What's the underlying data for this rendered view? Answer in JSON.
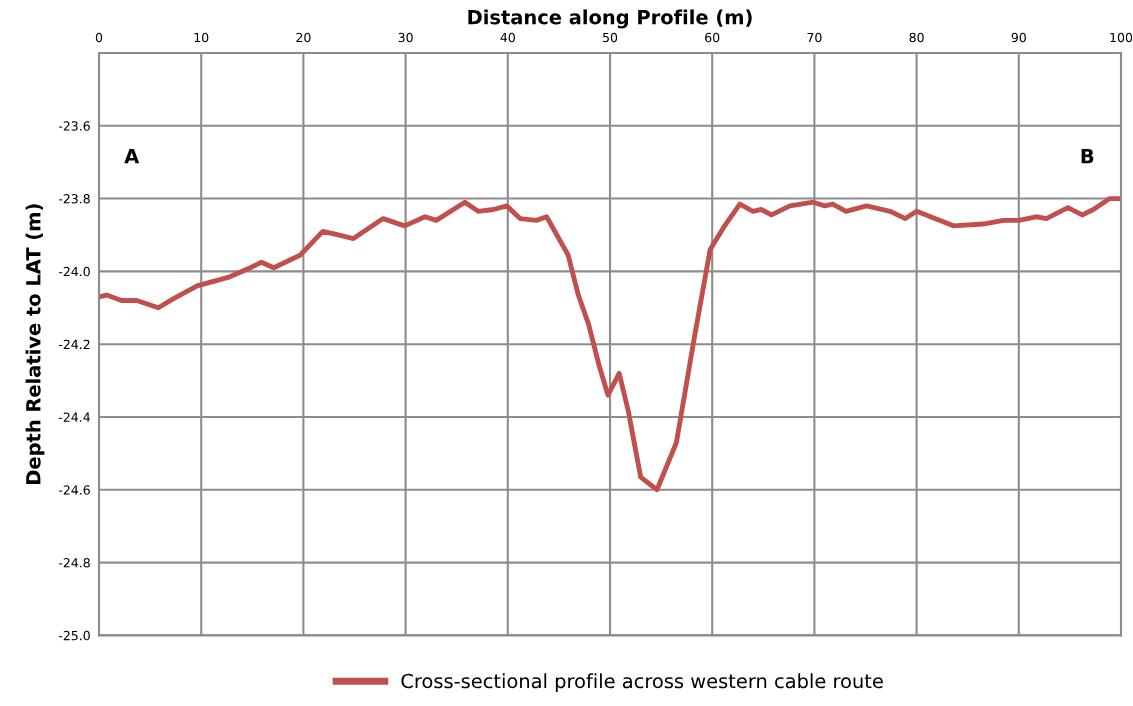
{
  "chart_data": {
    "type": "line",
    "xlabel": "Distance along Profile (m)",
    "ylabel": "Depth Relative to LAT (m)",
    "x": [
      0,
      0.75,
      2.2,
      3.7,
      5.8,
      7.3,
      9.6,
      12.8,
      14.8,
      15.9,
      17.1,
      19.7,
      21.9,
      23.4,
      24.9,
      27.8,
      29.9,
      31.9,
      33.0,
      35.8,
      37.1,
      38.6,
      39.9,
      41.2,
      42.8,
      43.8,
      45.9,
      46.9,
      47.9,
      48.9,
      49.8,
      50.9,
      51.8,
      53.0,
      54.6,
      56.5,
      58.2,
      59.8,
      61.1,
      62.7,
      64.0,
      64.8,
      65.8,
      67.6,
      69.9,
      71.0,
      71.8,
      73.1,
      75.1,
      77.4,
      78.9,
      80.0,
      83.6,
      86.5,
      88.5,
      90.0,
      91.7,
      92.7,
      94.8,
      96.2,
      97.3,
      98.9,
      100.0
    ],
    "series": [
      {
        "name": "Cross-sectional profile across western cable route",
        "color": "#c0504d",
        "values": [
          -24.07,
          -24.065,
          -24.08,
          -24.08,
          -24.1,
          -24.075,
          -24.04,
          -24.015,
          -23.99,
          -23.975,
          -23.99,
          -23.955,
          -23.89,
          -23.9,
          -23.91,
          -23.855,
          -23.875,
          -23.85,
          -23.86,
          -23.81,
          -23.835,
          -23.83,
          -23.82,
          -23.855,
          -23.86,
          -23.85,
          -23.955,
          -24.065,
          -24.145,
          -24.255,
          -24.34,
          -24.28,
          -24.385,
          -24.565,
          -24.6,
          -24.47,
          -24.19,
          -23.94,
          -23.88,
          -23.815,
          -23.835,
          -23.83,
          -23.845,
          -23.82,
          -23.81,
          -23.82,
          -23.815,
          -23.835,
          -23.82,
          -23.835,
          -23.855,
          -23.835,
          -23.875,
          -23.87,
          -23.86,
          -23.86,
          -23.85,
          -23.855,
          -23.825,
          -23.845,
          -23.83,
          -23.8,
          -23.8
        ]
      }
    ],
    "xlim": [
      0,
      100
    ],
    "xticks": [
      0,
      10,
      20,
      30,
      40,
      50,
      60,
      70,
      80,
      90,
      100
    ],
    "ylim": [
      -25.0,
      -23.4
    ],
    "yticks": [
      {
        "value": -25.0,
        "label": "-25.0"
      },
      {
        "value": -24.8,
        "label": "-24.8"
      },
      {
        "value": -24.6,
        "label": "-24.6"
      },
      {
        "value": -24.4,
        "label": "-24.4"
      },
      {
        "value": -24.2,
        "label": "-24.2"
      },
      {
        "value": -24.0,
        "label": "-24.0"
      },
      {
        "value": -23.8,
        "label": "-23.8"
      },
      {
        "value": -23.6,
        "label": "-23.6"
      },
      {
        "value": -23.4,
        "label": null
      }
    ],
    "annotations": [
      "A",
      "B"
    ],
    "grid": true,
    "legend": "bottom",
    "line_style": "solid",
    "marker": "none"
  }
}
